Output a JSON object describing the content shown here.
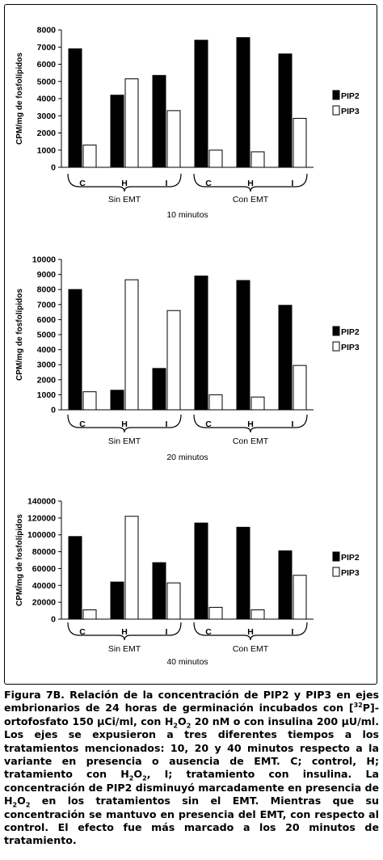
{
  "chart_data": [
    {
      "type": "bar",
      "title": "10 minutos",
      "ylabel": "CPM/mg de fosfolípidos",
      "ylim": [
        0,
        8000
      ],
      "yticks": [
        0,
        1000,
        2000,
        3000,
        4000,
        5000,
        6000,
        7000,
        8000
      ],
      "categories": [
        "C",
        "H",
        "I",
        "C",
        "H",
        "I"
      ],
      "groups": [
        {
          "label": "Sin EMT"
        },
        {
          "label": "Con EMT"
        }
      ],
      "series": [
        {
          "name": "PIP2",
          "color": "#000000",
          "values": [
            6900,
            4200,
            5350,
            7400,
            7550,
            6600
          ]
        },
        {
          "name": "PIP3",
          "color": "#ffffff",
          "values": [
            1300,
            5150,
            3300,
            1000,
            900,
            2850
          ]
        }
      ]
    },
    {
      "type": "bar",
      "title": "20 minutos",
      "ylabel": "CPM/mg de fosfolípidos",
      "ylim": [
        0,
        10000
      ],
      "yticks": [
        0,
        1000,
        2000,
        3000,
        4000,
        5000,
        6000,
        7000,
        8000,
        9000,
        10000
      ],
      "categories": [
        "C",
        "H",
        "I",
        "C",
        "H",
        "I"
      ],
      "groups": [
        {
          "label": "Sin EMT"
        },
        {
          "label": "Con EMT"
        }
      ],
      "series": [
        {
          "name": "PIP2",
          "color": "#000000",
          "values": [
            8000,
            1300,
            2750,
            8900,
            8600,
            6950
          ]
        },
        {
          "name": "PIP3",
          "color": "#ffffff",
          "values": [
            1200,
            8650,
            6600,
            1000,
            850,
            2950
          ]
        }
      ]
    },
    {
      "type": "bar",
      "title": "40 minutos",
      "ylabel": "CPM/mg de fosfolípidos",
      "ylim": [
        0,
        140000
      ],
      "yticks": [
        0,
        20000,
        40000,
        60000,
        80000,
        100000,
        120000,
        140000
      ],
      "categories": [
        "C",
        "H",
        "I",
        "C",
        "H",
        "I"
      ],
      "groups": [
        {
          "label": "Sin EMT"
        },
        {
          "label": "Con EMT"
        }
      ],
      "series": [
        {
          "name": "PIP2",
          "color": "#000000",
          "values": [
            98000,
            44000,
            67000,
            114000,
            109000,
            81000
          ]
        },
        {
          "name": "PIP3",
          "color": "#ffffff",
          "values": [
            11000,
            122000,
            43000,
            14000,
            11000,
            52000
          ]
        }
      ]
    }
  ],
  "caption": {
    "figure_label": "Figura 7B.",
    "p1": " Relación de la concentración de PIP2 y PIP3 en ejes embrionarios de 24 horas de germinación incubados con [",
    "sup_32": "32",
    "p2": "P]-ortofosfato 150 µCi/ml, con H",
    "sub_2a": "2",
    "p3": "O",
    "sub_2b": "2",
    "p4": " 20 nM o con insulina 200 µU/ml. Los ejes se expusieron a tres diferentes tiempos a los tratamientos mencionados: 10, 20 y 40 minutos respecto a la variante en presencia o ausencia de EMT. C; control, H; tratamiento con H",
    "sub_2c": "2",
    "p5": "O",
    "sub_2d": "2",
    "p6": ", I; tratamiento con insulina. La concentración de PIP2 disminuyó marcadamente en presencia de H",
    "sub_2e": "2",
    "p7": "O",
    "sub_2f": "2",
    "p8": " en los tratamientos sin el EMT. Mientras que su concentración se mantuvo en presencia del EMT, con respecto al control. El efecto fue más marcado a los 20 minutos de tratamiento."
  }
}
